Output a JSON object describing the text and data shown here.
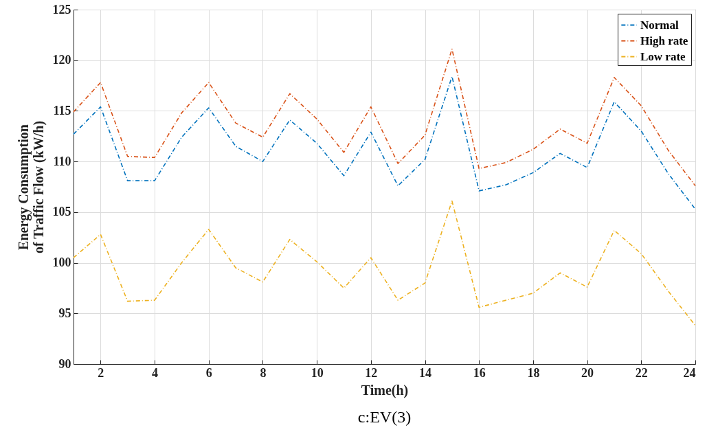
{
  "chart_data": {
    "type": "line",
    "xlabel": "Time(h)",
    "ylabel": "Energy Consumption\nof Traffic Flow (kW/h)",
    "annotations": [
      "c:EV(3)"
    ],
    "x": [
      1,
      2,
      3,
      4,
      5,
      6,
      7,
      8,
      9,
      10,
      11,
      12,
      13,
      14,
      15,
      16,
      17,
      18,
      19,
      20,
      21,
      22,
      23,
      24
    ],
    "series": [
      {
        "name": "Normal",
        "color": "#0072bd",
        "values": [
          112.7,
          115.4,
          108.1,
          108.1,
          112.4,
          115.3,
          111.5,
          110.0,
          114.1,
          111.8,
          108.6,
          112.9,
          107.6,
          110.2,
          118.4,
          107.1,
          107.7,
          108.9,
          110.8,
          109.4,
          115.9,
          113.0,
          108.8,
          105.3
        ]
      },
      {
        "name": "High rate",
        "color": "#d95319",
        "values": [
          114.9,
          117.8,
          110.5,
          110.4,
          114.8,
          117.8,
          113.8,
          112.4,
          116.7,
          114.2,
          110.9,
          115.4,
          109.8,
          112.6,
          121.1,
          109.3,
          109.9,
          111.2,
          113.2,
          111.8,
          118.3,
          115.5,
          111.1,
          107.6
        ]
      },
      {
        "name": "Low rate",
        "color": "#edb120",
        "values": [
          100.5,
          102.8,
          96.2,
          96.3,
          100.0,
          103.3,
          99.5,
          98.1,
          102.3,
          100.1,
          97.5,
          100.5,
          96.3,
          98.0,
          106.1,
          95.6,
          96.3,
          97.0,
          99.0,
          97.6,
          103.2,
          100.9,
          97.2,
          93.8
        ]
      }
    ],
    "xlim": [
      1,
      24
    ],
    "xticks": [
      2,
      4,
      6,
      8,
      10,
      12,
      14,
      16,
      18,
      20,
      22,
      24
    ],
    "ylim": [
      90,
      125
    ],
    "yticks": [
      90,
      95,
      100,
      105,
      110,
      115,
      120,
      125
    ],
    "grid": true,
    "legend": "top right",
    "line_style": "dashed",
    "marker": "none"
  }
}
